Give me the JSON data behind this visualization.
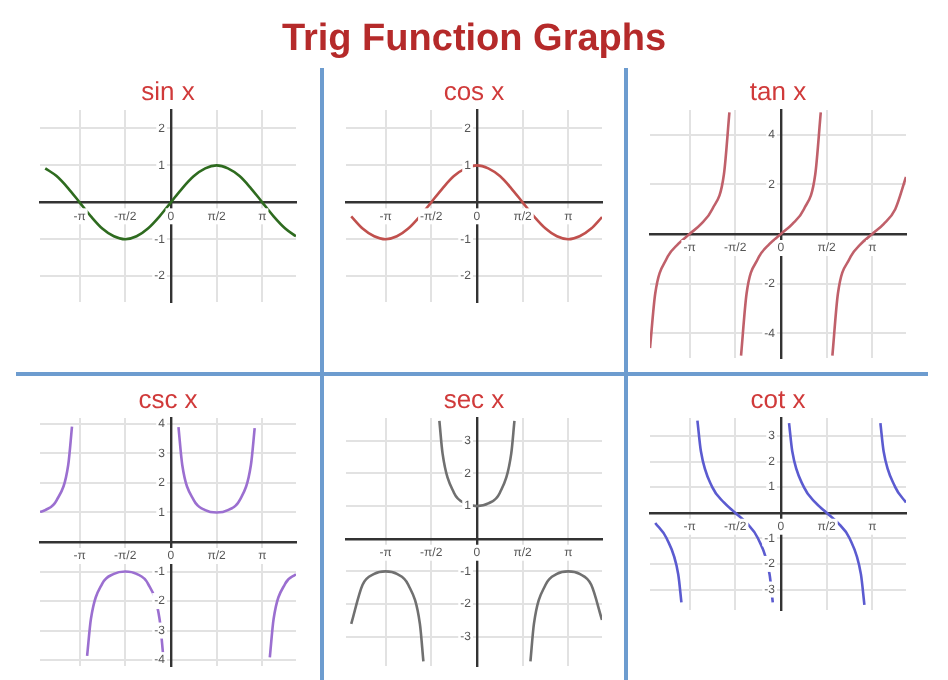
{
  "chart_data": [
    {
      "type": "other",
      "title": "Trig Function Graphs"
    },
    {
      "type": "line",
      "title": "sin x",
      "x": [
        -4.32,
        -3.93,
        -3.53,
        -3.14,
        -2.75,
        -2.36,
        -1.96,
        -1.57,
        -1.18,
        -0.79,
        -0.39,
        0,
        0.39,
        0.79,
        1.18,
        1.57,
        1.96,
        2.36,
        2.75,
        3.14,
        3.53,
        3.93,
        4.3
      ],
      "series": [
        {
          "color": "#2e6b1f",
          "values": [
            0.92,
            0.71,
            0.38,
            0,
            -0.38,
            -0.71,
            -0.92,
            -1,
            -0.92,
            -0.71,
            -0.38,
            0,
            0.38,
            0.71,
            0.92,
            1,
            0.92,
            0.71,
            0.38,
            0,
            -0.38,
            -0.71,
            -0.92
          ]
        }
      ],
      "xlim": [
        -4.5,
        4.3
      ],
      "ylim": [
        -2.7,
        2.5
      ],
      "xticks": [
        {
          "value": -3.14,
          "label": "-π"
        },
        {
          "value": -1.57,
          "label": "-π/2"
        },
        {
          "value": 0,
          "label": "0"
        },
        {
          "value": 1.57,
          "label": "π/2"
        },
        {
          "value": 3.14,
          "label": "π"
        }
      ],
      "yticks": [
        -2,
        -1,
        1,
        2
      ],
      "grid": true,
      "marker": "none"
    },
    {
      "type": "line",
      "title": "cos x",
      "x": [
        -4.32,
        -3.93,
        -3.53,
        -3.14,
        -2.75,
        -2.36,
        -1.96,
        -1.57,
        -1.18,
        -0.79,
        -0.39,
        0,
        0.39,
        0.79,
        1.18,
        1.57,
        1.96,
        2.36,
        2.75,
        3.14,
        3.53,
        3.93,
        4.3
      ],
      "series": [
        {
          "color": "#c0504d",
          "values": [
            -0.38,
            -0.71,
            -0.92,
            -1,
            -0.92,
            -0.71,
            -0.38,
            0,
            0.38,
            0.71,
            0.92,
            1,
            0.92,
            0.71,
            0.38,
            0,
            -0.38,
            -0.71,
            -0.92,
            -1,
            -0.92,
            -0.71,
            -0.4
          ]
        }
      ],
      "xlim": [
        -4.5,
        4.3
      ],
      "ylim": [
        -2.7,
        2.5
      ],
      "xticks": [
        {
          "value": -3.14,
          "label": "-π"
        },
        {
          "value": -1.57,
          "label": "-π/2"
        },
        {
          "value": 0,
          "label": "0"
        },
        {
          "value": 1.57,
          "label": "π/2"
        },
        {
          "value": 3.14,
          "label": "π"
        }
      ],
      "yticks": [
        -2,
        -1,
        1,
        2
      ],
      "grid": true,
      "marker": "none"
    },
    {
      "type": "line",
      "title": "tan x",
      "x": [
        -4.5,
        -4.32,
        -3.93,
        -3.53,
        -3.14,
        -2.75,
        -2.36,
        -1.96,
        -1.77,
        -1.57,
        -1.37,
        -1.18,
        -0.79,
        -0.39,
        0,
        0.39,
        0.79,
        1.18,
        1.37,
        1.57,
        1.77,
        1.96,
        2.36,
        2.75,
        3.14,
        3.53,
        3.93,
        4.3
      ],
      "series": [
        {
          "color": "#c0606a",
          "values": [
            -4.6,
            -2.4,
            -1,
            -0.4,
            0,
            0.4,
            1,
            2.4,
            4.9,
            null,
            -4.9,
            -2.4,
            -1,
            -0.4,
            0,
            0.4,
            1,
            2.4,
            4.9,
            null,
            -4.9,
            -2.4,
            -1,
            -0.4,
            0,
            0.4,
            1,
            2.3
          ]
        }
      ],
      "xlim": [
        -4.5,
        4.3
      ],
      "ylim": [
        -5,
        5
      ],
      "xticks": [
        {
          "value": -3.14,
          "label": "-π"
        },
        {
          "value": -1.57,
          "label": "-π/2"
        },
        {
          "value": 0,
          "label": "0"
        },
        {
          "value": 1.57,
          "label": "π/2"
        },
        {
          "value": 3.14,
          "label": "π"
        }
      ],
      "yticks": [
        -4,
        -2,
        2,
        4
      ],
      "grid": true,
      "marker": "none"
    },
    {
      "type": "line",
      "title": "csc x",
      "x": [
        -4.5,
        -4.32,
        -3.93,
        -3.53,
        -3.4,
        -3.14,
        -2.88,
        -2.75,
        -2.36,
        -1.96,
        -1.57,
        -1.18,
        -0.79,
        -0.39,
        -0.26,
        0,
        0.26,
        0.39,
        0.79,
        1.18,
        1.57,
        1.96,
        2.36,
        2.75,
        2.88,
        3.14,
        3.4,
        3.53,
        3.93,
        4.3
      ],
      "series": [
        {
          "color": "#9b6fd0",
          "values": [
            1.02,
            1.08,
            1.41,
            2.61,
            3.91,
            null,
            -3.86,
            -2.61,
            -1.41,
            -1.08,
            -1,
            -1.08,
            -1.41,
            -2.61,
            -3.89,
            null,
            3.89,
            2.61,
            1.41,
            1.08,
            1,
            1.08,
            1.41,
            2.61,
            3.86,
            null,
            -3.91,
            -2.61,
            -1.41,
            -1.09
          ]
        }
      ],
      "xlim": [
        -4.5,
        4.3
      ],
      "ylim": [
        -4.2,
        4.2
      ],
      "xticks": [
        {
          "value": -3.14,
          "label": "-π"
        },
        {
          "value": -1.57,
          "label": "-π/2"
        },
        {
          "value": 0,
          "label": "0"
        },
        {
          "value": 1.57,
          "label": "π/2"
        },
        {
          "value": 3.14,
          "label": "π"
        }
      ],
      "yticks": [
        -4,
        -3,
        -2,
        -1,
        1,
        2,
        3,
        4
      ],
      "grid": true,
      "marker": "none"
    },
    {
      "type": "line",
      "title": "sec x",
      "x": [
        -4.32,
        -3.93,
        -3.53,
        -3.14,
        -2.75,
        -2.36,
        -1.96,
        -1.84,
        -1.57,
        -1.29,
        -1.18,
        -0.79,
        -0.39,
        0,
        0.39,
        0.79,
        1.18,
        1.29,
        1.57,
        1.84,
        1.96,
        2.36,
        2.75,
        3.14,
        3.53,
        3.93,
        4.3
      ],
      "series": [
        {
          "color": "#707070",
          "values": [
            -2.61,
            -1.41,
            -1.08,
            -1,
            -1.08,
            -1.41,
            -2.61,
            -3.76,
            null,
            3.61,
            2.61,
            1.41,
            1.08,
            1,
            1.08,
            1.41,
            2.61,
            3.61,
            null,
            -3.76,
            -2.61,
            -1.41,
            -1.08,
            -1,
            -1.08,
            -1.41,
            -2.49
          ]
        }
      ],
      "xlim": [
        -4.5,
        4.3
      ],
      "ylim": [
        -3.9,
        3.7
      ],
      "xticks": [
        {
          "value": -3.14,
          "label": "-π"
        },
        {
          "value": -1.57,
          "label": "-π/2"
        },
        {
          "value": 0,
          "label": "0"
        },
        {
          "value": 1.57,
          "label": "π/2"
        },
        {
          "value": 3.14,
          "label": "π"
        }
      ],
      "yticks": [
        -3,
        -2,
        -1,
        1,
        2,
        3
      ],
      "grid": true,
      "marker": "none"
    },
    {
      "type": "line",
      "title": "cot x",
      "x": [
        -4.32,
        -3.93,
        -3.53,
        -3.42,
        -3.14,
        -2.87,
        -2.75,
        -2.36,
        -1.96,
        -1.57,
        -1.18,
        -0.79,
        -0.39,
        -0.28,
        0,
        0.28,
        0.39,
        0.79,
        1.18,
        1.57,
        1.96,
        2.36,
        2.75,
        2.87,
        3.14,
        3.42,
        3.53,
        3.93,
        4.3
      ],
      "series": [
        {
          "color": "#5b5bd0",
          "values": [
            -0.4,
            -1,
            -2.4,
            -3.5,
            null,
            3.6,
            2.4,
            1,
            0.4,
            0,
            -0.4,
            -1,
            -2.4,
            -3.5,
            null,
            3.5,
            2.4,
            1,
            0.4,
            0,
            -0.4,
            -1,
            -2.4,
            -3.6,
            null,
            3.5,
            2.4,
            1,
            0.4
          ]
        }
      ],
      "xlim": [
        -4.5,
        4.3
      ],
      "ylim": [
        -3.8,
        3.7
      ],
      "xticks": [
        {
          "value": -3.14,
          "label": "-π"
        },
        {
          "value": -1.57,
          "label": "-π/2"
        },
        {
          "value": 0,
          "label": "0"
        },
        {
          "value": 1.57,
          "label": "π/2"
        },
        {
          "value": 3.14,
          "label": "π"
        }
      ],
      "yticks": [
        -3,
        -2,
        -1,
        1,
        2,
        3
      ],
      "grid": true,
      "marker": "none"
    }
  ]
}
